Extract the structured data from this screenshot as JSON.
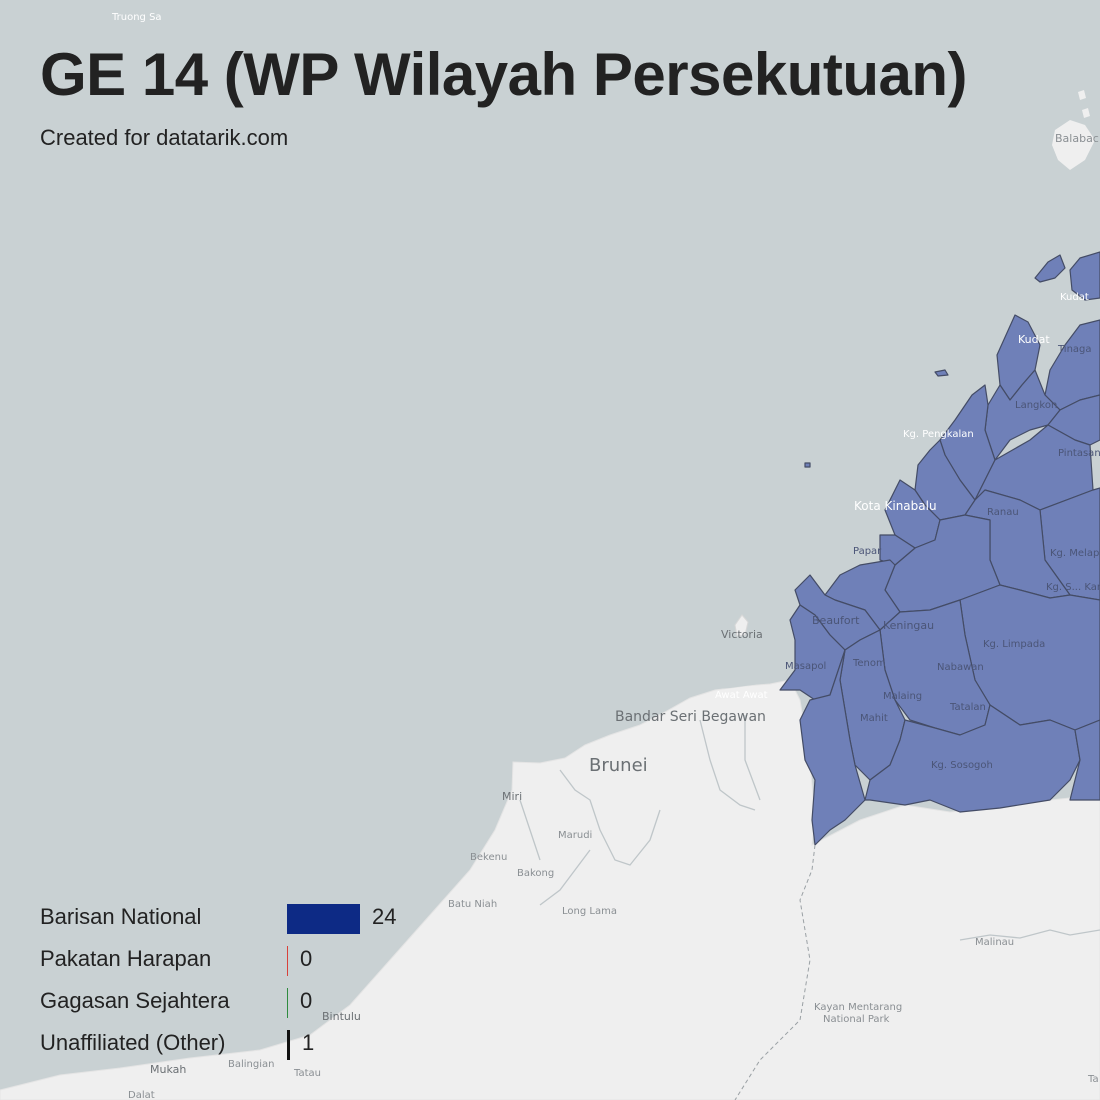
{
  "title": "GE 14 (WP Wilayah Persekutuan)",
  "subtitle": "Created for datatarik.com",
  "legend": [
    {
      "label": "Barisan National",
      "value": 24,
      "color": "#0d2a85"
    },
    {
      "label": "Pakatan Harapan",
      "value": 0,
      "color": "#d8413a"
    },
    {
      "label": "Gagasan Sejahtera",
      "value": 0,
      "color": "#2e8b3e"
    },
    {
      "label": "Unaffiliated (Other)",
      "value": 1,
      "color": "#111111"
    }
  ],
  "map": {
    "sea_color": "#c9d1d3",
    "land_color": "#efefef",
    "district_fill": "#6f80b8",
    "labels": {
      "truong_sa": "Truong Sa",
      "balabac": "Balabac",
      "kudat_island": "Kudat",
      "kudat": "Kudat",
      "tinaga": "Tinaga",
      "langkon": "Langkon",
      "kg_pengkalan": "Kg. Pengkalan",
      "pitas": "Pintasan",
      "kota_kinabalu": "Kota Kinabalu",
      "ranau": "Ranau",
      "papar": "Papar",
      "kg_melapi": "Kg. Melapi",
      "karamuak": "Kg. S... Karamuak",
      "beaufort": "Beaufort",
      "keningau": "Keningau",
      "victoria": "Victoria",
      "kg_limpada": "Kg. Limpada",
      "masapol": "Masapol",
      "tenom": "Tenom",
      "nabawan": "Nabawan",
      "awat_awat": "Awat Awat",
      "malaing": "Malaing",
      "bandar_seri_begawan": "Bandar Seri Begawan",
      "mahit": "Mahit",
      "tatalan": "Tatalan",
      "brunei": "Brunei",
      "kg_sosogoh": "Kg. Sosogoh",
      "miri": "Miri",
      "marudi": "Marudi",
      "bekenu": "Bekenu",
      "bakong": "Bakong",
      "batu_niah": "Batu Niah",
      "long_lama": "Long Lama",
      "malinau": "Malinau",
      "kayan_mentarang": "Kayan Mentarang",
      "national_park": "National Park",
      "bintulu": "Bintulu",
      "mukah": "Mukah",
      "balingian": "Balingian",
      "tatau": "Tatau",
      "dalat": "Dalat",
      "ta": "Ta"
    }
  }
}
